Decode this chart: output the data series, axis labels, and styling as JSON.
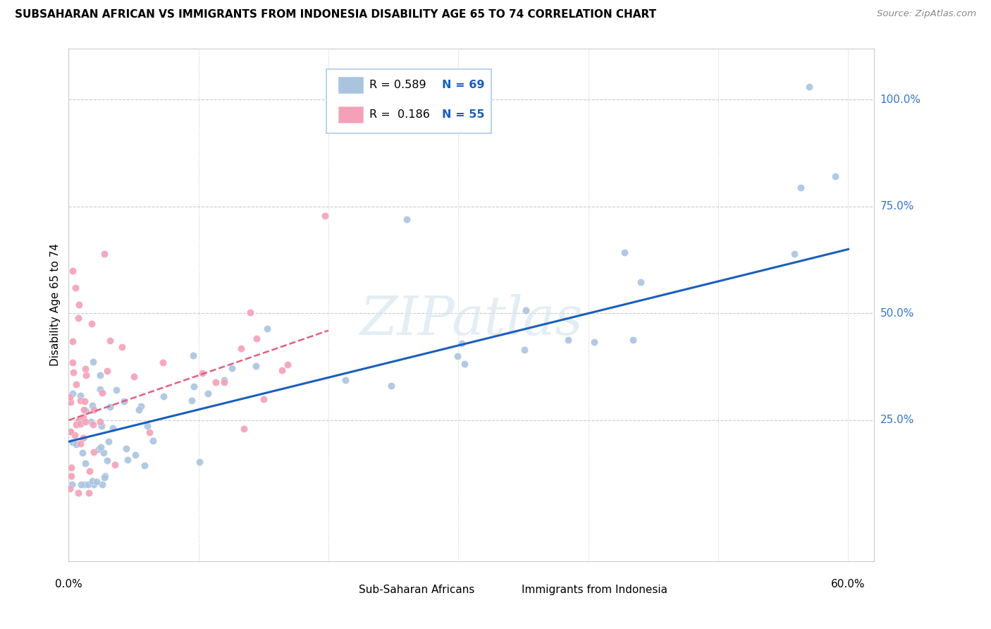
{
  "title": "SUBSAHARAN AFRICAN VS IMMIGRANTS FROM INDONESIA DISABILITY AGE 65 TO 74 CORRELATION CHART",
  "source": "Source: ZipAtlas.com",
  "ylabel": "Disability Age 65 to 74",
  "xlim": [
    0.0,
    0.62
  ],
  "ylim": [
    -0.08,
    1.12
  ],
  "blue_R": 0.589,
  "blue_N": 69,
  "pink_R": 0.186,
  "pink_N": 55,
  "blue_color": "#aac4e0",
  "pink_color": "#f4a0b8",
  "blue_line_color": "#1a5fbd",
  "pink_line_color": "#e06080",
  "watermark": "ZIPatlas",
  "legend_label_blue": "Sub-Saharan Africans",
  "legend_label_pink": "Immigrants from Indonesia",
  "ytick_vals": [
    0.25,
    0.5,
    0.75,
    1.0
  ],
  "ytick_labels": [
    "25.0%",
    "50.0%",
    "75.0%",
    "100.0%"
  ],
  "blue_line_x0": 0.0,
  "blue_line_y0": 0.2,
  "blue_line_x1": 0.6,
  "blue_line_y1": 0.65,
  "pink_line_x0": 0.0,
  "pink_line_y0": 0.25,
  "pink_line_x1": 0.2,
  "pink_line_y1": 0.46
}
